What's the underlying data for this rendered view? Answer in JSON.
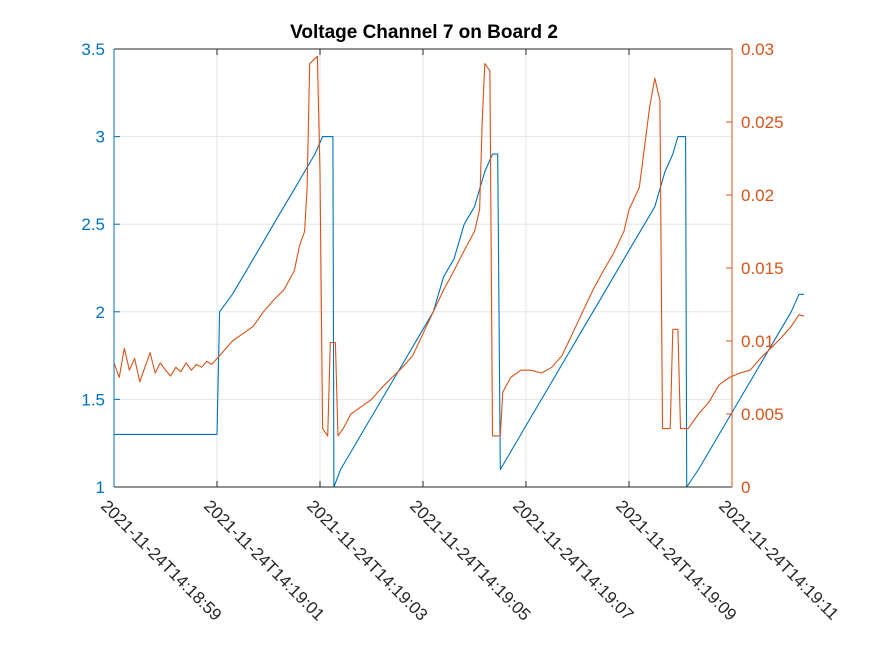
{
  "chart_data": {
    "type": "line",
    "title": "Voltage Channel 7 on Board 2",
    "xlabel": "",
    "ylabel_left": "",
    "ylabel_right": "",
    "grid": true,
    "x_ticks": [
      "2021-11-24T14:18:59",
      "2021-11-24T14:19:01",
      "2021-11-24T14:19:03",
      "2021-11-24T14:19:05",
      "2021-11-24T14:19:07",
      "2021-11-24T14:19:09",
      "2021-11-24T14:19:11"
    ],
    "x_range_seconds": [
      0,
      12
    ],
    "left_axis": {
      "range": [
        1,
        3.5
      ],
      "ticks": [
        "1",
        "1.5",
        "2",
        "2.5",
        "3",
        "3.5"
      ],
      "color": "#0072BD"
    },
    "right_axis": {
      "range": [
        0,
        0.03
      ],
      "ticks": [
        "0",
        "0.005",
        "0.01",
        "0.015",
        "0.02",
        "0.025",
        "0.03"
      ],
      "color": "#D95319"
    },
    "series": [
      {
        "axis": "left",
        "color": "#0072BD",
        "points": [
          [
            0,
            1.3
          ],
          [
            2.0,
            1.3
          ],
          [
            2.05,
            2.0
          ],
          [
            2.3,
            2.1
          ],
          [
            2.5,
            2.2
          ],
          [
            2.7,
            2.3
          ],
          [
            2.9,
            2.4
          ],
          [
            3.1,
            2.5
          ],
          [
            3.3,
            2.6
          ],
          [
            3.5,
            2.7
          ],
          [
            3.7,
            2.8
          ],
          [
            3.9,
            2.9
          ],
          [
            4.05,
            3.0
          ],
          [
            4.25,
            3.0
          ],
          [
            4.27,
            1.0
          ],
          [
            4.4,
            1.1
          ],
          [
            4.6,
            1.2
          ],
          [
            4.8,
            1.3
          ],
          [
            5.0,
            1.4
          ],
          [
            5.2,
            1.5
          ],
          [
            5.4,
            1.6
          ],
          [
            5.6,
            1.7
          ],
          [
            5.8,
            1.8
          ],
          [
            6.0,
            1.9
          ],
          [
            6.2,
            2.0
          ],
          [
            6.4,
            2.2
          ],
          [
            6.6,
            2.3
          ],
          [
            6.8,
            2.5
          ],
          [
            7.0,
            2.6
          ],
          [
            7.2,
            2.8
          ],
          [
            7.35,
            2.9
          ],
          [
            7.45,
            2.9
          ],
          [
            7.5,
            1.1
          ],
          [
            7.7,
            1.2
          ],
          [
            7.9,
            1.3
          ],
          [
            8.1,
            1.4
          ],
          [
            8.3,
            1.5
          ],
          [
            8.5,
            1.6
          ],
          [
            8.7,
            1.7
          ],
          [
            8.9,
            1.8
          ],
          [
            9.1,
            1.9
          ],
          [
            9.3,
            2.0
          ],
          [
            9.5,
            2.1
          ],
          [
            9.7,
            2.2
          ],
          [
            9.9,
            2.3
          ],
          [
            10.1,
            2.4
          ],
          [
            10.3,
            2.5
          ],
          [
            10.5,
            2.6
          ],
          [
            10.7,
            2.8
          ],
          [
            10.85,
            2.9
          ],
          [
            10.95,
            3.0
          ],
          [
            11.1,
            3.0
          ],
          [
            11.12,
            1.0
          ],
          [
            11.35,
            1.1
          ],
          [
            11.55,
            1.2
          ],
          [
            11.75,
            1.3
          ],
          [
            11.95,
            1.4
          ],
          [
            12.15,
            1.5
          ],
          [
            12.35,
            1.6
          ],
          [
            12.55,
            1.7
          ],
          [
            12.75,
            1.8
          ],
          [
            12.95,
            1.9
          ],
          [
            13.15,
            2.0
          ],
          [
            13.3,
            2.1
          ],
          [
            13.4,
            2.1
          ]
        ]
      },
      {
        "axis": "right",
        "color": "#D95319",
        "points": [
          [
            0,
            0.0085
          ],
          [
            0.1,
            0.0075
          ],
          [
            0.2,
            0.0095
          ],
          [
            0.3,
            0.008
          ],
          [
            0.4,
            0.0088
          ],
          [
            0.5,
            0.0072
          ],
          [
            0.6,
            0.0082
          ],
          [
            0.7,
            0.0092
          ],
          [
            0.8,
            0.0078
          ],
          [
            0.9,
            0.0085
          ],
          [
            1.0,
            0.008
          ],
          [
            1.1,
            0.0076
          ],
          [
            1.2,
            0.0082
          ],
          [
            1.3,
            0.0079
          ],
          [
            1.4,
            0.0085
          ],
          [
            1.5,
            0.008
          ],
          [
            1.6,
            0.0084
          ],
          [
            1.7,
            0.0082
          ],
          [
            1.8,
            0.0086
          ],
          [
            1.9,
            0.0084
          ],
          [
            2.0,
            0.0088
          ],
          [
            2.1,
            0.0092
          ],
          [
            2.3,
            0.01
          ],
          [
            2.5,
            0.0105
          ],
          [
            2.7,
            0.011
          ],
          [
            2.9,
            0.012
          ],
          [
            3.1,
            0.0128
          ],
          [
            3.3,
            0.0135
          ],
          [
            3.5,
            0.0148
          ],
          [
            3.6,
            0.0165
          ],
          [
            3.7,
            0.0175
          ],
          [
            3.75,
            0.0205
          ],
          [
            3.8,
            0.029
          ],
          [
            3.95,
            0.0295
          ],
          [
            4.0,
            0.0215
          ],
          [
            4.05,
            0.004
          ],
          [
            4.15,
            0.0035
          ],
          [
            4.2,
            0.0099
          ],
          [
            4.3,
            0.0099
          ],
          [
            4.35,
            0.0035
          ],
          [
            4.45,
            0.004
          ],
          [
            4.6,
            0.005
          ],
          [
            4.8,
            0.0055
          ],
          [
            5.0,
            0.006
          ],
          [
            5.2,
            0.0068
          ],
          [
            5.4,
            0.0075
          ],
          [
            5.6,
            0.0082
          ],
          [
            5.8,
            0.009
          ],
          [
            6.0,
            0.0105
          ],
          [
            6.2,
            0.012
          ],
          [
            6.4,
            0.0135
          ],
          [
            6.6,
            0.0148
          ],
          [
            6.8,
            0.0162
          ],
          [
            7.0,
            0.0175
          ],
          [
            7.1,
            0.019
          ],
          [
            7.15,
            0.025
          ],
          [
            7.2,
            0.029
          ],
          [
            7.3,
            0.0285
          ],
          [
            7.35,
            0.0035
          ],
          [
            7.5,
            0.0035
          ],
          [
            7.55,
            0.0065
          ],
          [
            7.7,
            0.0075
          ],
          [
            7.9,
            0.008
          ],
          [
            8.1,
            0.008
          ],
          [
            8.3,
            0.0078
          ],
          [
            8.5,
            0.0082
          ],
          [
            8.7,
            0.009
          ],
          [
            8.9,
            0.0105
          ],
          [
            9.1,
            0.012
          ],
          [
            9.3,
            0.0135
          ],
          [
            9.5,
            0.0148
          ],
          [
            9.7,
            0.016
          ],
          [
            9.9,
            0.0175
          ],
          [
            10.0,
            0.019
          ],
          [
            10.2,
            0.0205
          ],
          [
            10.4,
            0.026
          ],
          [
            10.5,
            0.028
          ],
          [
            10.6,
            0.0265
          ],
          [
            10.65,
            0.004
          ],
          [
            10.8,
            0.004
          ],
          [
            10.85,
            0.0108
          ],
          [
            10.95,
            0.0108
          ],
          [
            11.0,
            0.004
          ],
          [
            11.15,
            0.004
          ],
          [
            11.35,
            0.005
          ],
          [
            11.55,
            0.0058
          ],
          [
            11.75,
            0.007
          ],
          [
            11.95,
            0.0075
          ],
          [
            12.15,
            0.0078
          ],
          [
            12.35,
            0.008
          ],
          [
            12.55,
            0.0088
          ],
          [
            12.75,
            0.0095
          ],
          [
            12.95,
            0.0102
          ],
          [
            13.15,
            0.011
          ],
          [
            13.3,
            0.0118
          ],
          [
            13.4,
            0.0117
          ]
        ]
      }
    ]
  }
}
